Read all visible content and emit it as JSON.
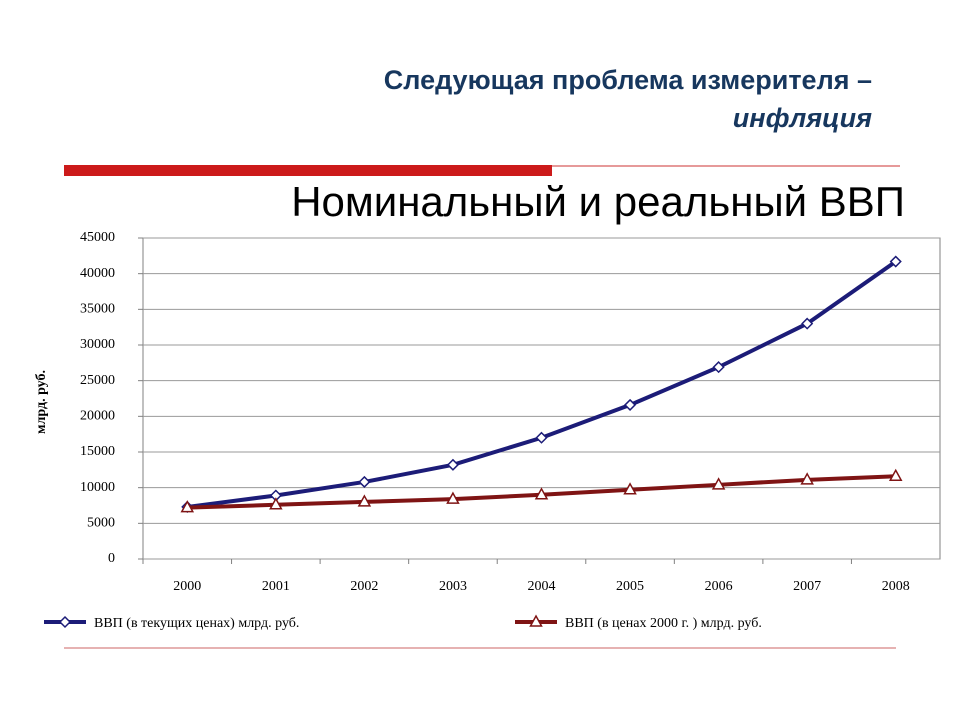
{
  "header": {
    "title_line1": "Следующая проблема измерителя –",
    "title_line2": "инфляция"
  },
  "chart_data": {
    "type": "line",
    "title": "Номинальный и реальный ВВП",
    "y_label": "млрд. руб.",
    "categories": [
      "2000",
      "2001",
      "2002",
      "2003",
      "2004",
      "2005",
      "2006",
      "2007",
      "2008"
    ],
    "series": [
      {
        "name": "ВВП (в текущих ценах) млрд. руб.",
        "color": "#1c1c78",
        "marker": "diamond",
        "values": [
          7300,
          8900,
          10800,
          13200,
          17000,
          21600,
          26900,
          33000,
          41700
        ]
      },
      {
        "name": "ВВП (в ценах 2000 г. ) млрд. руб.",
        "color": "#7f1414",
        "marker": "triangle",
        "values": [
          7200,
          7600,
          8000,
          8400,
          9000,
          9700,
          10400,
          11100,
          11600
        ]
      }
    ],
    "ylim": [
      0,
      45000
    ],
    "yticks": [
      0,
      5000,
      10000,
      15000,
      20000,
      25000,
      30000,
      35000,
      40000,
      45000
    ],
    "grid": true
  }
}
